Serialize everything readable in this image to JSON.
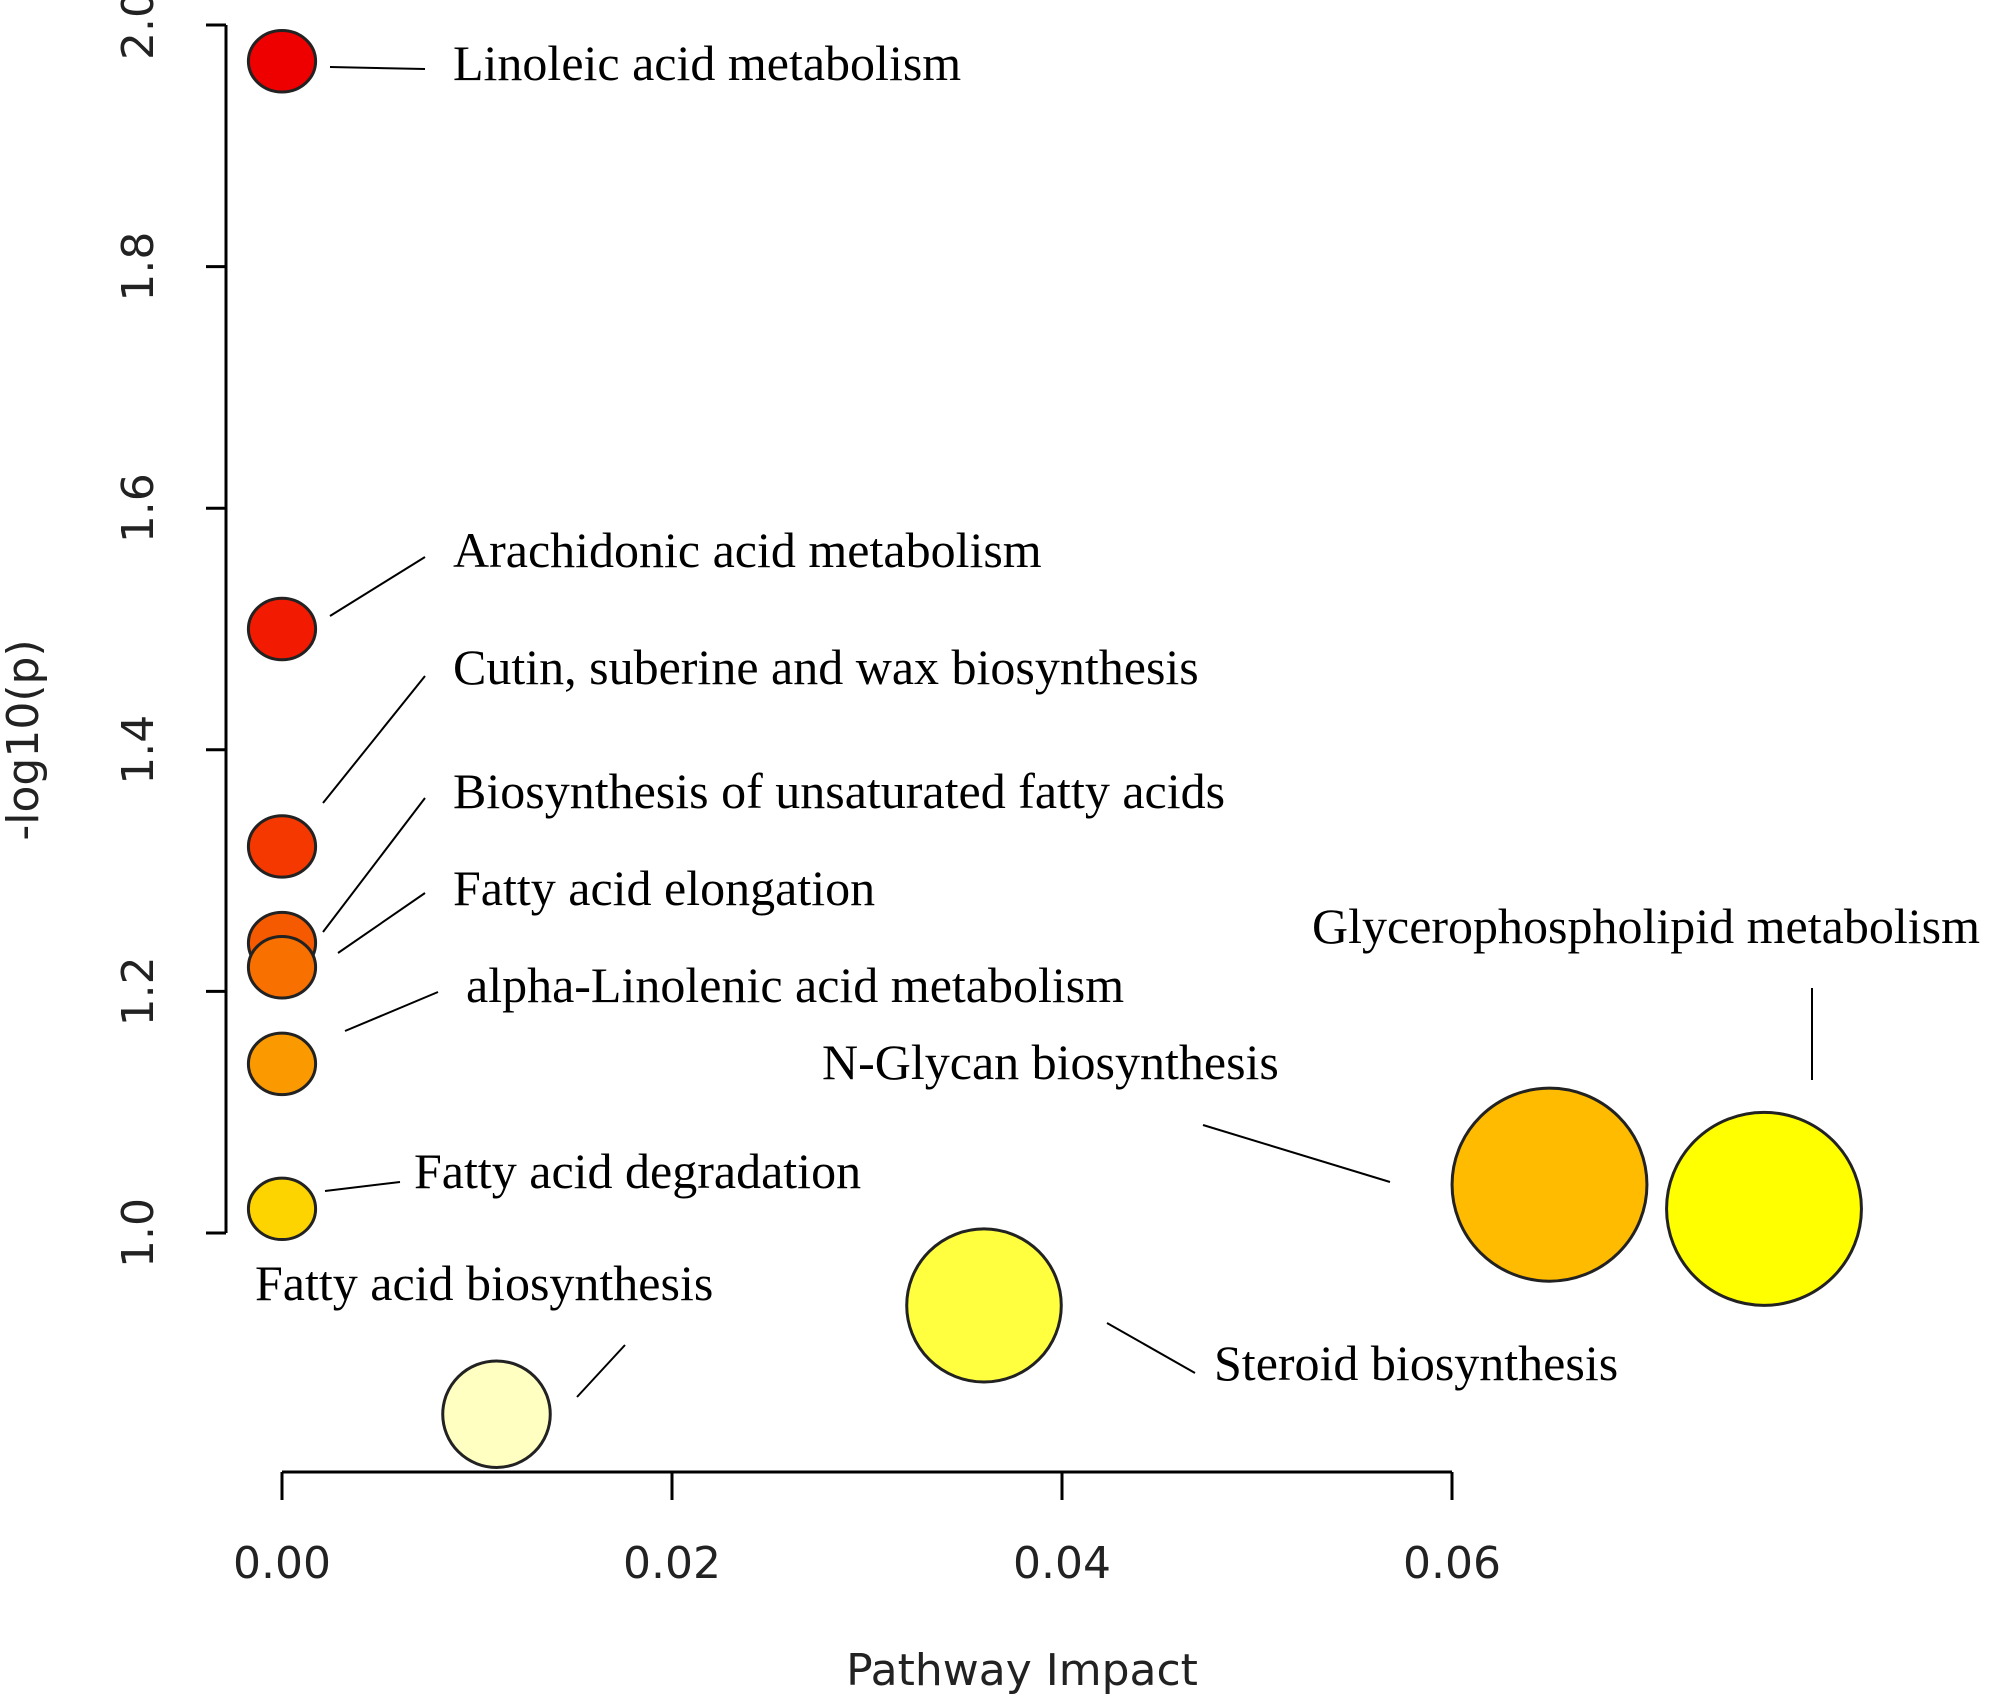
{
  "chart_data": {
    "type": "scatter",
    "title": "",
    "xlabel": "Pathway Impact",
    "ylabel": "-log10(p)",
    "xlim": [
      0,
      0.08
    ],
    "ylim": [
      0.83,
      2.02
    ],
    "x_ticks": [
      {
        "value": 0.0,
        "label": "0.00"
      },
      {
        "value": 0.02,
        "label": "0.02"
      },
      {
        "value": 0.04,
        "label": "0.04"
      },
      {
        "value": 0.06,
        "label": "0.06"
      }
    ],
    "y_ticks": [
      {
        "value": 1.0,
        "label": "1.0"
      },
      {
        "value": 1.2,
        "label": "1.2"
      },
      {
        "value": 1.4,
        "label": "1.4"
      },
      {
        "value": 1.6,
        "label": "1.6"
      },
      {
        "value": 1.8,
        "label": "1.8"
      },
      {
        "value": 2.0,
        "label": "2.0"
      }
    ],
    "grid": false,
    "points": [
      {
        "label": "Linoleic acid metabolism",
        "x": 0.0,
        "y": 1.97,
        "size": 1,
        "color": "#ee0000"
      },
      {
        "label": "Arachidonic acid metabolism",
        "x": 0.0,
        "y": 1.5,
        "size": 1,
        "color": "#f21a00"
      },
      {
        "label": "Cutin, suberine and wax biosynthesis",
        "x": 0.0,
        "y": 1.32,
        "size": 1,
        "color": "#f53800"
      },
      {
        "label": "Biosynthesis of unsaturated fatty acids",
        "x": 0.0,
        "y": 1.24,
        "size": 1,
        "color": "#f55a00"
      },
      {
        "label": "Fatty acid elongation",
        "x": 0.0,
        "y": 1.22,
        "size": 1,
        "color": "#f87000"
      },
      {
        "label": "alpha-Linolenic acid metabolism",
        "x": 0.0,
        "y": 1.14,
        "size": 1,
        "color": "#fb9a00"
      },
      {
        "label": "Fatty acid degradation",
        "x": 0.0,
        "y": 1.02,
        "size": 1,
        "color": "#fdd400"
      },
      {
        "label": "Fatty acid biosynthesis",
        "x": 0.011,
        "y": 0.85,
        "size": 1.6,
        "color": "#ffffc2"
      },
      {
        "label": "Steroid biosynthesis",
        "x": 0.036,
        "y": 0.94,
        "size": 2.3,
        "color": "#ffff40"
      },
      {
        "label": "N-Glycan biosynthesis",
        "x": 0.065,
        "y": 1.04,
        "size": 2.9,
        "color": "#ffbb00"
      },
      {
        "label": "Glycerophospholipid metabolism",
        "x": 0.076,
        "y": 1.02,
        "size": 2.9,
        "color": "#ffff00"
      }
    ]
  }
}
